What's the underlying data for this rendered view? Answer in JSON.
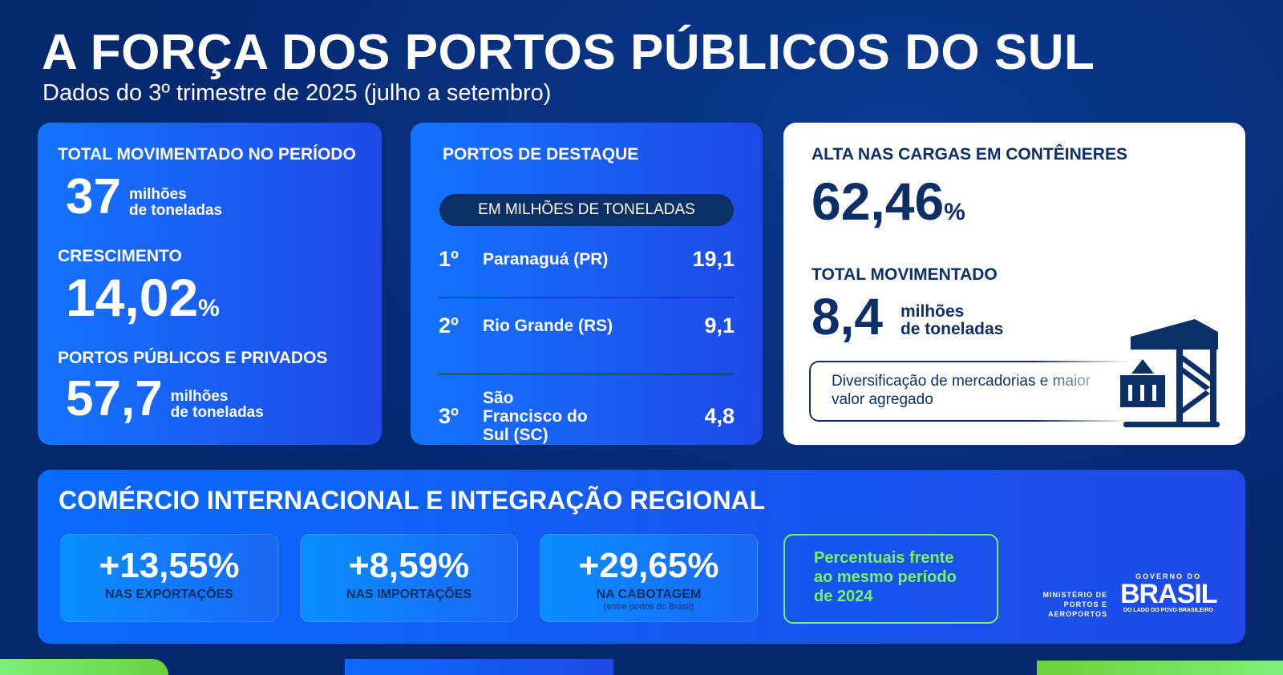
{
  "title": "A FORÇA DOS PORTOS PÚBLICOS DO SUL",
  "subtitle": "Dados do 3º trimestre de 2025 (julho a setembro)",
  "card1": {
    "total_label": "TOTAL MOVIMENTADO NO PERÍODO",
    "total_value": "37",
    "total_unit1": "milhões",
    "total_unit2": "de toneladas",
    "growth_label": "CRESCIMENTO",
    "growth_value": "14,02",
    "growth_pct": "%",
    "all_label": "PORTOS PÚBLICOS E PRIVADOS",
    "all_value": "57,7",
    "all_unit1": "milhões",
    "all_unit2": "de toneladas"
  },
  "card2": {
    "title": "PORTOS DE DESTAQUE",
    "unit_pill": "EM MILHÕES DE TONELADAS",
    "ports": [
      {
        "rank": "1º",
        "name": "Paranaguá (PR)",
        "value": "19,1"
      },
      {
        "rank": "2º",
        "name": "Rio Grande (RS)",
        "value": "9,1"
      },
      {
        "rank": "3º",
        "name": "São Francisco do Sul (SC)",
        "value": "4,8"
      }
    ]
  },
  "card3": {
    "title": "ALTA NAS CARGAS EM CONTÊINERES",
    "value": "62,46",
    "pct": "%",
    "total_label": "TOTAL MOVIMENTADO",
    "total_value": "8,4",
    "unit1": "milhões",
    "unit2": "de toneladas",
    "note": "Diversificação de mercadorias e maior valor agregado",
    "icon": "port-crane-container-icon"
  },
  "bottom": {
    "title": "COMÉRCIO INTERNACIONAL E INTEGRAÇÃO REGIONAL",
    "stats": [
      {
        "value": "+13,55%",
        "label": "NAS EXPORTAÇÕES",
        "sub": ""
      },
      {
        "value": "+8,59%",
        "label": "NAS IMPORTAÇÕES",
        "sub": ""
      },
      {
        "value": "+29,65%",
        "label": "NA CABOTAGEM",
        "sub": "(entre portos do Brasil)"
      }
    ],
    "note": "Percentuais frente ao mesmo período de 2024"
  },
  "logos": {
    "ministry": "MINISTÉRIO DE PORTOS E AEROPORTOS",
    "gov_top": "GOVERNO DO",
    "gov_main": "BRASIL",
    "gov_bottom": "DO LADO DO POVO BRASILEIRO"
  },
  "colors": {
    "background": "#06286f",
    "card_blue": "#1473ff",
    "navy_text": "#0b2f66",
    "green": "#7cf06a"
  }
}
